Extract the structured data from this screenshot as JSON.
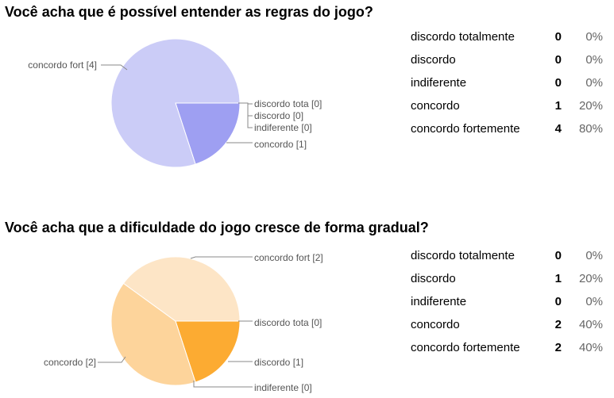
{
  "chart_data": [
    {
      "type": "pie",
      "title": "Você acha que é possível entender as regras do jogo?",
      "slices": [
        {
          "label": "concordo fort [4]",
          "value": 4,
          "color": "#cbccf7"
        },
        {
          "label": "concordo [1]",
          "value": 1,
          "color": "#9e9ff2"
        },
        {
          "label": "discordo tota [0]",
          "value": 0,
          "color": "#8283ef"
        },
        {
          "label": "discordo [0]",
          "value": 0,
          "color": "#6b6de9"
        },
        {
          "label": "indiferente [0]",
          "value": 0,
          "color": "#5557e0"
        }
      ],
      "table": [
        {
          "label": "discordo totalmente",
          "count": "0",
          "percent": "0%"
        },
        {
          "label": "discordo",
          "count": "0",
          "percent": "0%"
        },
        {
          "label": "indiferente",
          "count": "0",
          "percent": "0%"
        },
        {
          "label": "concordo",
          "count": "1",
          "percent": "20%"
        },
        {
          "label": "concordo fortemente",
          "count": "4",
          "percent": "80%"
        }
      ]
    },
    {
      "type": "pie",
      "title": "Você acha que a dificuldade do jogo cresce de forma gradual?",
      "slices": [
        {
          "label": "concordo fort [2]",
          "value": 2,
          "color": "#fde5c6"
        },
        {
          "label": "discordo tota [0]",
          "value": 0,
          "color": "#fbb040"
        },
        {
          "label": "discordo [1]",
          "value": 1,
          "color": "#fcab32"
        },
        {
          "label": "indiferente [0]",
          "value": 0,
          "color": "#f9a030"
        },
        {
          "label": "concordo [2]",
          "value": 2,
          "color": "#fdd49b"
        }
      ],
      "table": [
        {
          "label": "discordo totalmente",
          "count": "0",
          "percent": "0%"
        },
        {
          "label": "discordo",
          "count": "1",
          "percent": "20%"
        },
        {
          "label": "indiferente",
          "count": "0",
          "percent": "0%"
        },
        {
          "label": "concordo",
          "count": "2",
          "percent": "40%"
        },
        {
          "label": "concordo fortemente",
          "count": "2",
          "percent": "40%"
        }
      ]
    }
  ]
}
